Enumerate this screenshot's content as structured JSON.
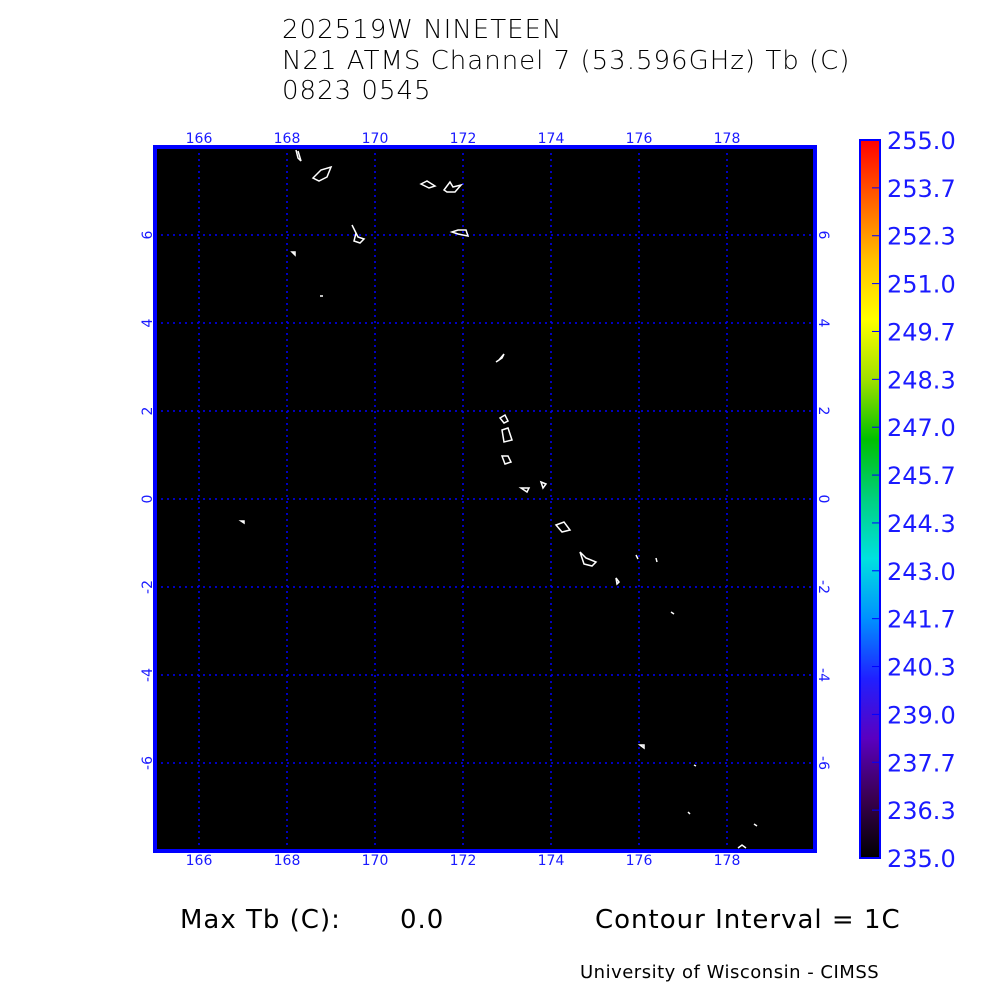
{
  "title": {
    "line1": "202519W NINETEEN",
    "line2": "N21 ATMS Channel 7 (53.596GHz) Tb (C)",
    "line3": "0823 0545"
  },
  "map": {
    "lon_range": [
      165,
      180
    ],
    "lat_range": [
      -8,
      8
    ],
    "lon_ticks": [
      "166",
      "168",
      "170",
      "172",
      "174",
      "176",
      "178"
    ],
    "lat_ticks": [
      "6",
      "4",
      "2",
      "0",
      "-2",
      "-4",
      "-6"
    ],
    "grid": true,
    "background_color": "#000000",
    "grid_color": "#0000ff",
    "coastline_color": "#ffffff"
  },
  "colorbar": {
    "labels": [
      "255.0",
      "253.7",
      "252.3",
      "251.0",
      "249.7",
      "248.3",
      "247.0",
      "245.7",
      "244.3",
      "243.0",
      "241.7",
      "240.3",
      "239.0",
      "237.7",
      "236.3",
      "235.0"
    ],
    "range": [
      235.0,
      255.0
    ],
    "colors": [
      "#000000",
      "#3a0050",
      "#5a00c0",
      "#2020ff",
      "#0090ff",
      "#00e0e0",
      "#00d080",
      "#00c000",
      "#a0e000",
      "#ffff00",
      "#ffc000",
      "#ff6000",
      "#ff0000"
    ]
  },
  "footer": {
    "max_tb_label": "Max Tb (C):",
    "max_tb_value": "0.0",
    "contour_interval": "Contour Interval = 1C",
    "credit": "University of Wisconsin - CIMSS"
  }
}
